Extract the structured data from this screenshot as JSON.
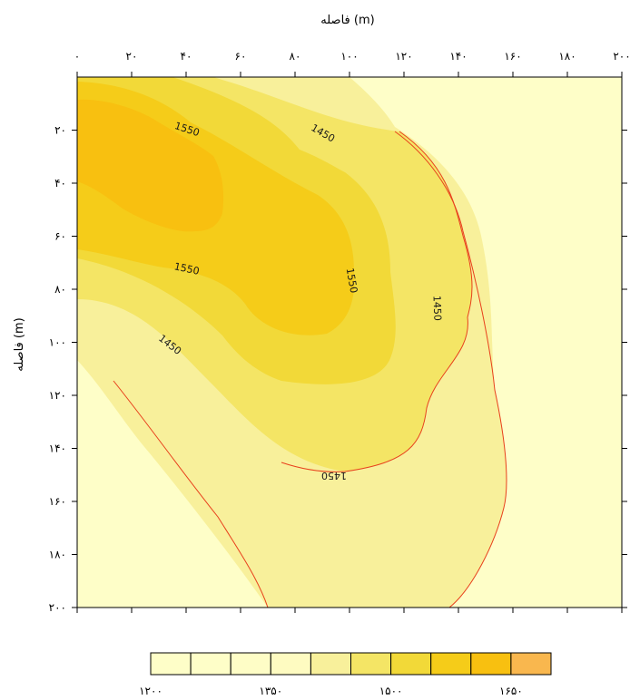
{
  "chart_data": {
    "type": "heatmap",
    "subtype": "filled-contour",
    "title": "",
    "xlabel": "فاصله (m)",
    "ylabel": "فاصله (m)",
    "xlim": [
      0,
      200
    ],
    "ylim": [
      200,
      0
    ],
    "x_axis_position": "top",
    "y_axis_inverted": true,
    "grid": false,
    "x_ticks": [
      0,
      20,
      40,
      60,
      80,
      100,
      120,
      140,
      160,
      180,
      200
    ],
    "x_tick_labels": [
      "۰",
      "۲۰",
      "۴۰",
      "۶۰",
      "۸۰",
      "۱۰۰",
      "۱۲۰",
      "۱۴۰",
      "۱۶۰",
      "۱۸۰",
      "۲۰۰"
    ],
    "y_ticks": [
      20,
      40,
      60,
      80,
      100,
      120,
      140,
      160,
      180,
      200
    ],
    "y_tick_labels": [
      "۲۰",
      "۴۰",
      "۶۰",
      "۸۰",
      "۱۰۰",
      "۱۲۰",
      "۱۴۰",
      "۱۶۰",
      "۱۸۰",
      "۲۰۰"
    ],
    "contour_lines": [
      {
        "value": 1450,
        "label": "1450",
        "color": "#e8401c"
      }
    ],
    "contour_labels": [
      "1550",
      "1450",
      "1550",
      "1550",
      "1450",
      "1450",
      "1450"
    ],
    "colorbar": {
      "position": "bottom",
      "levels": [
        1200,
        1250,
        1300,
        1350,
        1400,
        1450,
        1500,
        1550,
        1600,
        1650,
        1700
      ],
      "colors": [
        "#fefec8",
        "#fefec8",
        "#fefdc6",
        "#fefbc1",
        "#f8f09b",
        "#f4e565",
        "#f2d938",
        "#f5cc19",
        "#f8c010",
        "#f9b74e"
      ],
      "tick_labels": [
        "۱۲۰۰",
        "۱۳۵۰",
        "۱۵۰۰",
        "۱۶۵۰"
      ]
    },
    "fill_levels": [
      {
        "value": 1200,
        "color": "#fefec8"
      },
      {
        "value": 1400,
        "color": "#f8f09b"
      },
      {
        "value": 1450,
        "color": "#f4e565"
      },
      {
        "value": 1500,
        "color": "#f2d938"
      },
      {
        "value": 1550,
        "color": "#f5cc19"
      },
      {
        "value": 1600,
        "color": "#f8c010"
      }
    ]
  }
}
